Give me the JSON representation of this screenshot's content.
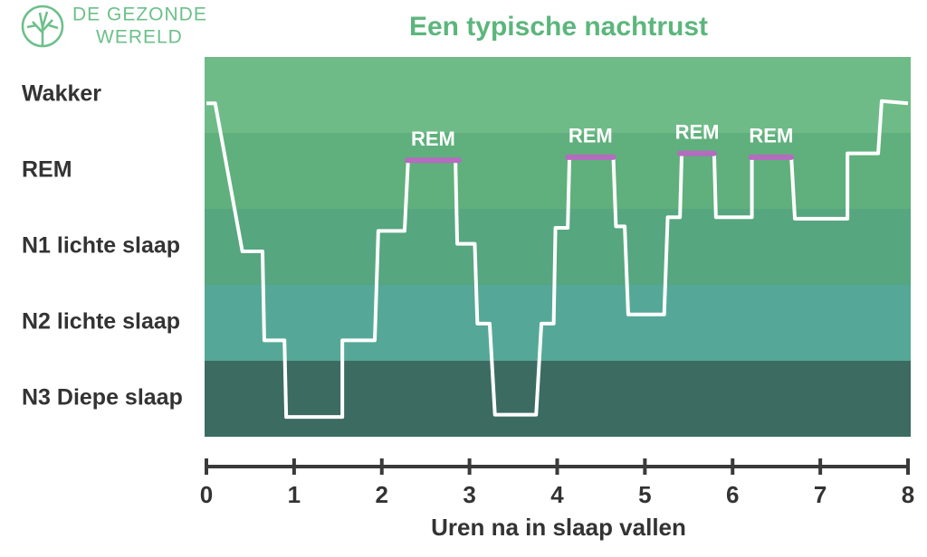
{
  "logo": [
    "DE GEZONDE",
    "WERELD"
  ],
  "chart_data": {
    "type": "line",
    "title": "Een typische nachtrust",
    "x_label": "Uren na in slaap vallen",
    "xlim": [
      0,
      8
    ],
    "xticks": [
      0,
      1,
      2,
      3,
      4,
      5,
      6,
      7,
      8
    ],
    "ylim": [
      0,
      5
    ],
    "yticks": [
      {
        "value": 4.5,
        "label": "Wakker"
      },
      {
        "value": 3.5,
        "label": "REM"
      },
      {
        "value": 2.5,
        "label": "N1 lichte slaap"
      },
      {
        "value": 1.5,
        "label": "N2 lichte slaap"
      },
      {
        "value": 0.5,
        "label": "N3 Diepe slaap"
      }
    ],
    "band_colors": [
      "#6fbb88",
      "#5fb07c",
      "#56a67f",
      "#55a898",
      "#3c6b62"
    ],
    "series": [
      {
        "color": "#ffffff",
        "x": [
          0,
          0.1,
          0.41,
          0.64,
          0.66,
          0.89,
          0.91,
          1.55,
          1.55,
          1.92,
          1.96,
          2.26,
          2.3,
          2.84,
          2.86,
          3.06,
          3.09,
          3.23,
          3.29,
          3.76,
          3.82,
          3.96,
          3.98,
          4.12,
          4.14,
          4.64,
          4.67,
          4.77,
          4.81,
          5.22,
          5.26,
          5.4,
          5.42,
          5.79,
          5.81,
          6.22,
          6.22,
          6.67,
          6.71,
          7.31,
          7.31,
          7.66,
          7.7,
          8
        ],
        "values": [
          4.39,
          4.39,
          2.44,
          2.44,
          1.27,
          1.27,
          0.26,
          0.26,
          1.27,
          1.27,
          2.71,
          2.71,
          3.64,
          3.64,
          2.54,
          2.54,
          1.49,
          1.49,
          0.29,
          0.29,
          1.49,
          1.49,
          2.75,
          2.75,
          3.68,
          3.68,
          2.77,
          2.77,
          1.61,
          1.61,
          2.89,
          2.89,
          3.73,
          3.73,
          2.89,
          2.89,
          3.68,
          3.68,
          2.87,
          2.87,
          3.73,
          3.73,
          4.42,
          4.39
        ]
      }
    ],
    "rem_periods": [
      {
        "label": "REM",
        "start": 2.29,
        "end": 2.88,
        "level": 3.64
      },
      {
        "label": "REM",
        "start": 4.12,
        "end": 4.64,
        "level": 3.68
      },
      {
        "label": "REM",
        "start": 5.4,
        "end": 5.79,
        "level": 3.73
      },
      {
        "label": "REM",
        "start": 6.21,
        "end": 6.67,
        "level": 3.68
      }
    ],
    "rem_color": "#b56bbf"
  }
}
